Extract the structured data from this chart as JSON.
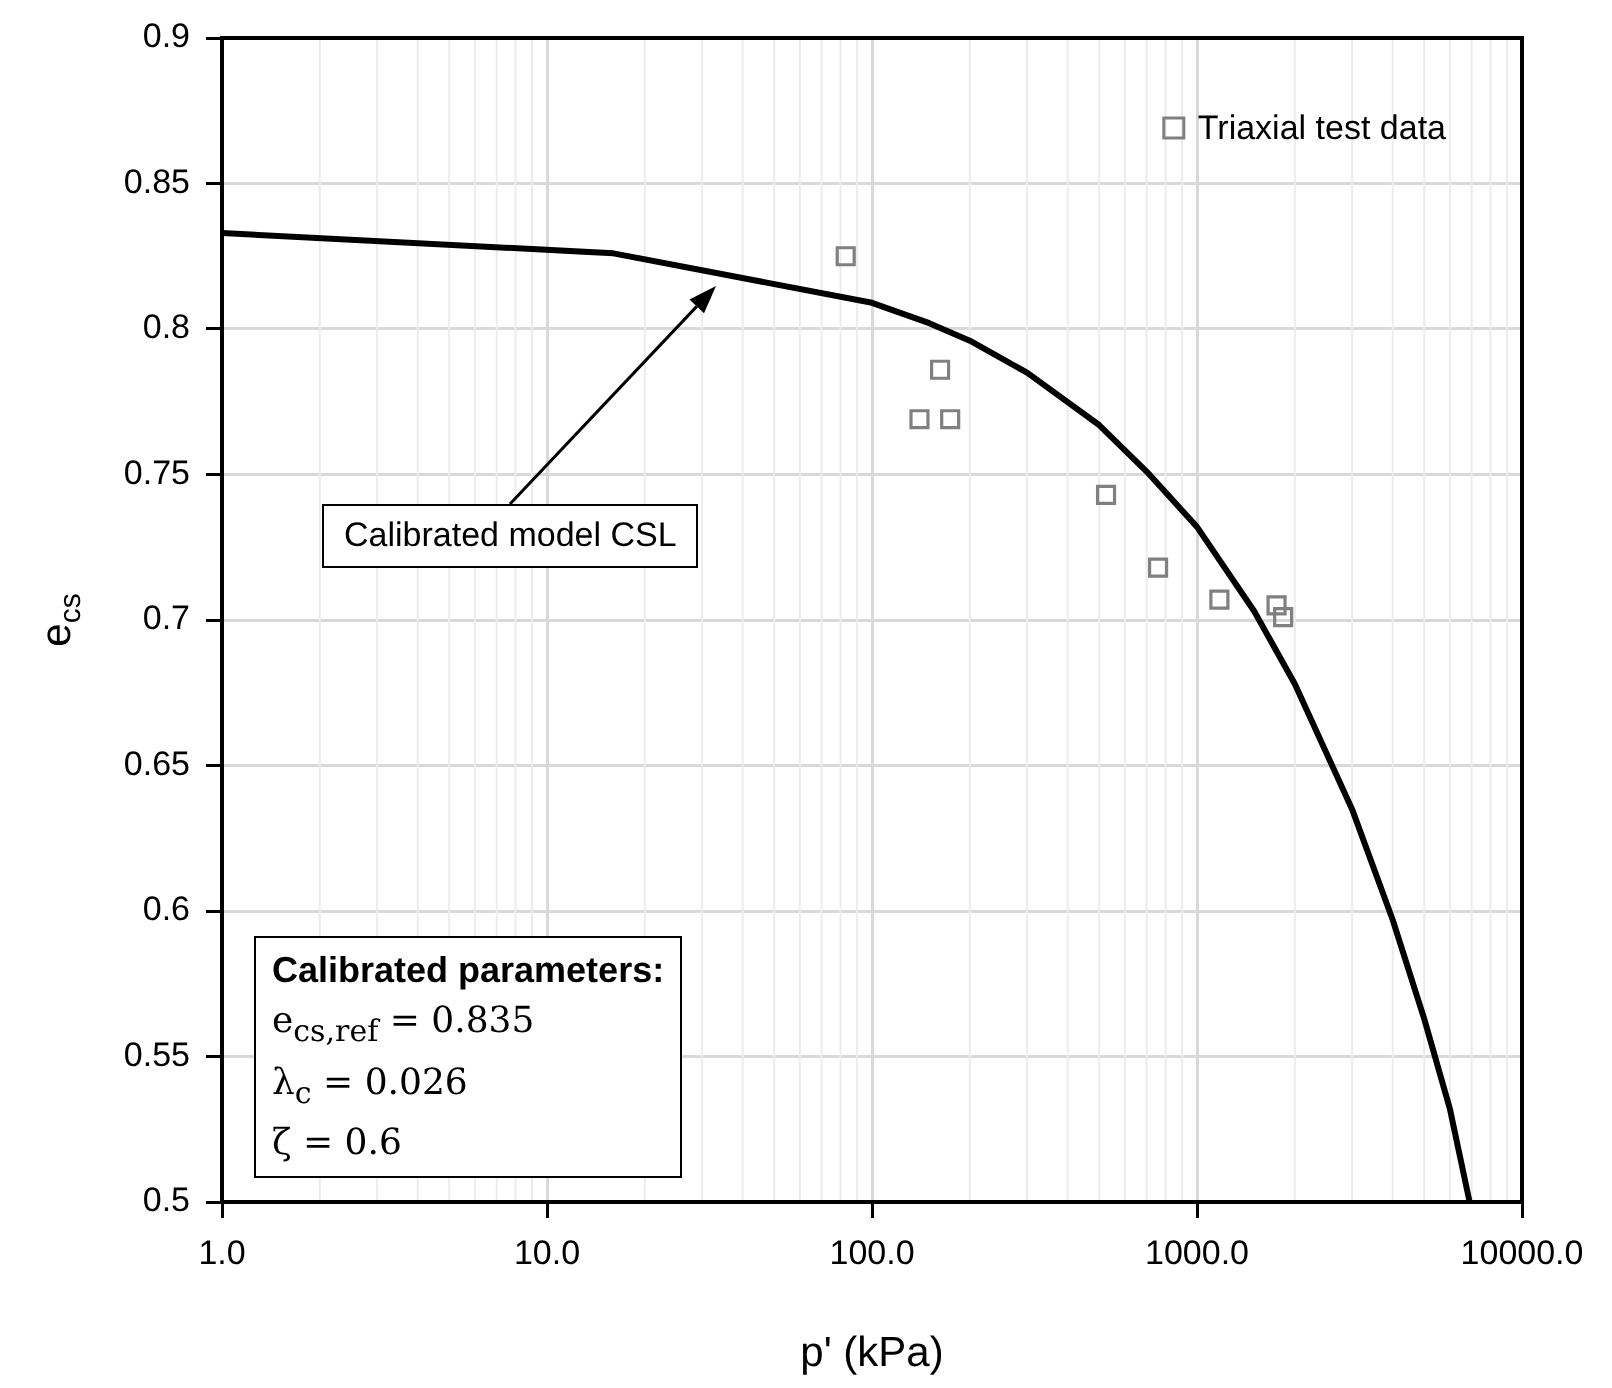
{
  "chart_data": {
    "type": "scatter",
    "xlabel": "p' (kPa)",
    "ylabel": "e$_{cs}$",
    "log": "x",
    "grid": true,
    "legend": "top right",
    "xlim": [
      1,
      10000
    ],
    "xticks": [
      {
        "value": 1,
        "label": "1.0"
      },
      {
        "value": 10,
        "label": "10.0"
      },
      {
        "value": 100,
        "label": "100.0"
      },
      {
        "value": 1000,
        "label": "1000.0"
      },
      {
        "value": 10000,
        "label": "10000.0"
      }
    ],
    "ylim": [
      0.5,
      0.9
    ],
    "yticks": [
      0.5,
      0.55,
      0.6,
      0.65,
      0.7,
      0.75,
      0.8,
      0.85,
      0.9
    ],
    "series": [
      {
        "name": "Triaxial test data",
        "color": "#808080",
        "marker": "square",
        "x": [
          83,
          162,
          140,
          174,
          525,
          759,
          1172,
          1757,
          1841
        ],
        "values": [
          0.825,
          0.786,
          0.769,
          0.769,
          0.743,
          0.718,
          0.707,
          0.705,
          0.701
        ]
      },
      {
        "type": "line",
        "color": "#000000",
        "marker": "none",
        "line_style": "solid",
        "x": [
          1,
          16,
          100,
          150,
          200,
          300,
          500,
          700,
          1000,
          1500,
          2000,
          3000,
          4000,
          5000,
          6000,
          6900
        ],
        "values": [
          0.833,
          0.826,
          0.809,
          0.802,
          0.796,
          0.785,
          0.767,
          0.751,
          0.732,
          0.703,
          0.678,
          0.635,
          0.597,
          0.563,
          0.532,
          0.5
        ]
      }
    ],
    "annotations": [
      "Calibrated model CSL",
      "Calibrated parameters:",
      "e$_{cs,ref}$ = 0.835",
      "λ$_{c}$ = 0.026",
      "ζ = 0.6"
    ]
  }
}
